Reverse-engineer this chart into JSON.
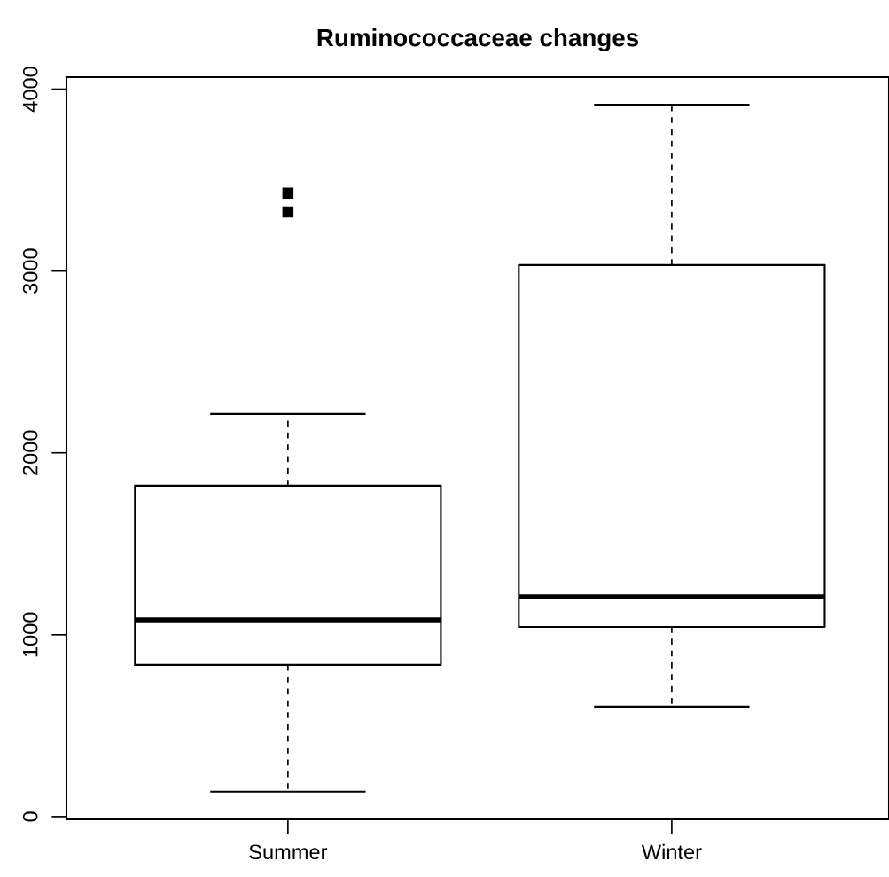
{
  "chart_data": {
    "type": "box",
    "title": "Ruminococcaceae changes",
    "categories": [
      "Summer",
      "Winter"
    ],
    "boxes": [
      {
        "low": 137,
        "q1": 834,
        "median": 1082,
        "q3": 1819,
        "high": 2214,
        "outliers": [
          3428,
          3325
        ]
      },
      {
        "low": 605,
        "q1": 1043,
        "median": 1209,
        "q3": 3033,
        "high": 3915
      }
    ],
    "ylim": [
      -15,
      4066
    ],
    "yticks": [
      0,
      1000,
      2000,
      3000,
      4000
    ],
    "grid": false,
    "marker": "square"
  }
}
